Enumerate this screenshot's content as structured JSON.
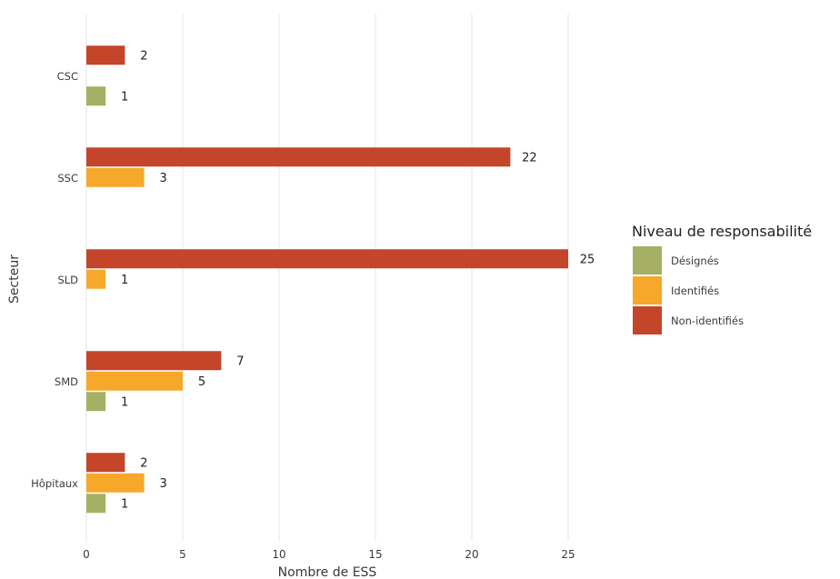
{
  "chart_data": {
    "type": "bar",
    "orientation": "horizontal",
    "categories": [
      "CSC",
      "SSC",
      "SLD",
      "SMD",
      "Hôpitaux"
    ],
    "series": [
      {
        "name": "Non-identifiés",
        "color": "#c4452a",
        "values": [
          2,
          22,
          25,
          7,
          2
        ]
      },
      {
        "name": "Identifiés",
        "color": "#f6a82b",
        "values": [
          null,
          3,
          1,
          5,
          3
        ]
      },
      {
        "name": "Désignés",
        "color": "#a5b064",
        "values": [
          1,
          null,
          null,
          1,
          1
        ]
      }
    ],
    "xlabel": "Nombre de ESS",
    "ylabel": "Secteur",
    "xlim": [
      0,
      25
    ],
    "xticks": [
      0,
      5,
      10,
      15,
      20,
      25
    ],
    "grid": "vertical",
    "legend": {
      "title": "Niveau de responsabilité",
      "placement": "right",
      "items": [
        "Désignés",
        "Identifiés",
        "Non-identifiés"
      ]
    }
  }
}
